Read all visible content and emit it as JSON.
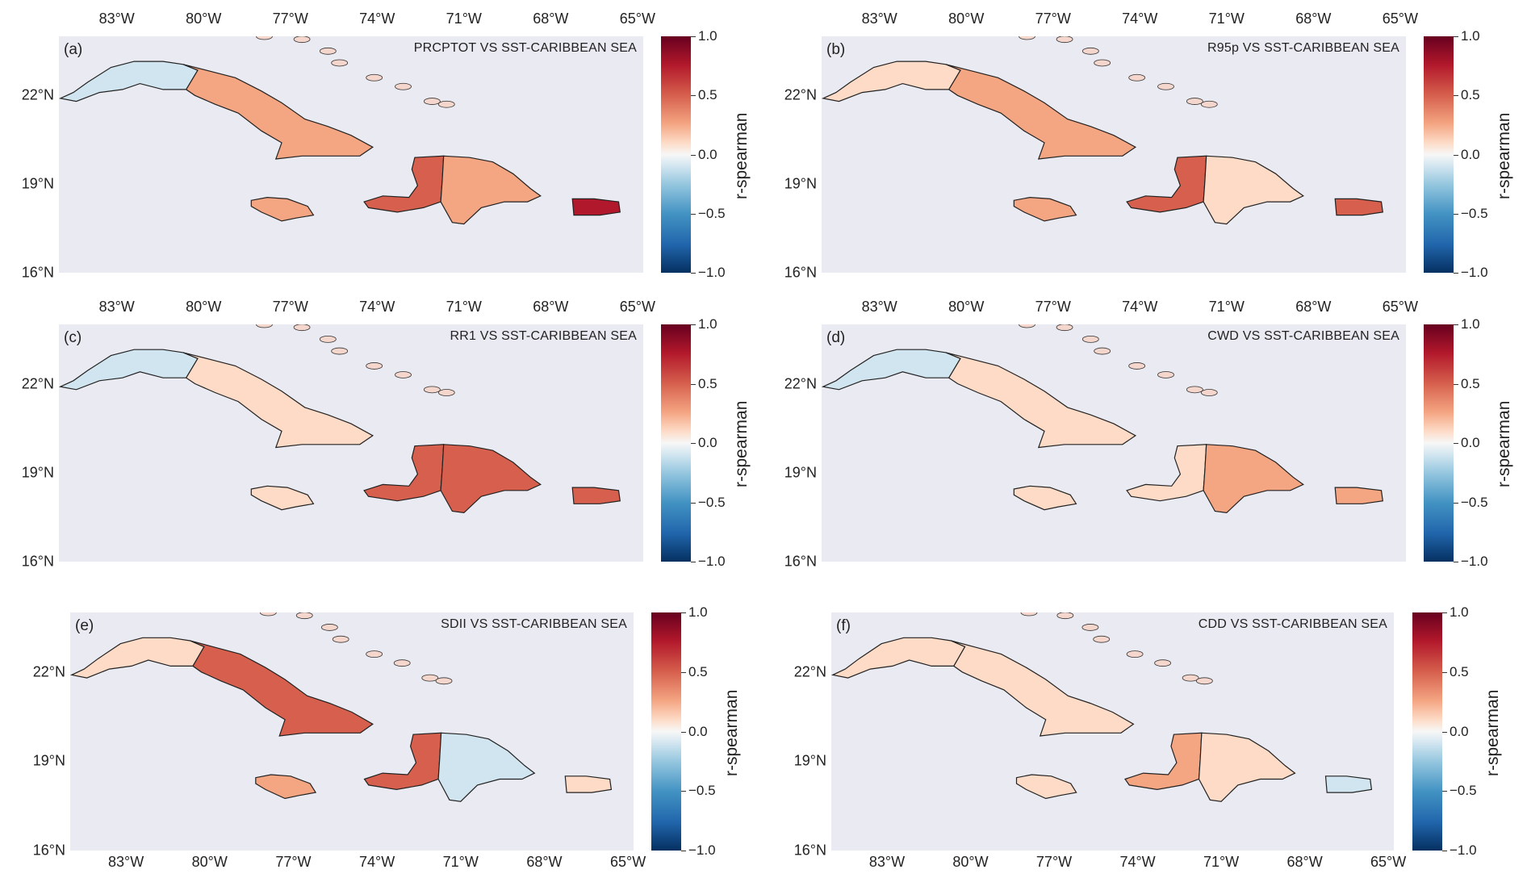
{
  "colorbar": {
    "label": "r-spearman",
    "ticks": [
      "1.0",
      "0.5",
      "0.0",
      "−0.5",
      "−1.0"
    ],
    "colors": [
      "#67001f",
      "#b2182b",
      "#d6604d",
      "#f4a582",
      "#fddbc7",
      "#f7f7f7",
      "#d1e5f0",
      "#92c5de",
      "#4393c3",
      "#2166ac",
      "#053061"
    ]
  },
  "lon_ticks": [
    "83°W",
    "80°W",
    "77°W",
    "74°W",
    "71°W",
    "68°W",
    "65°W"
  ],
  "lat_ticks": [
    "22°N",
    "19°N",
    "16°N"
  ],
  "map_extent": {
    "lon_min": -85.0,
    "lon_max": -64.8,
    "lat_min": 16.0,
    "lat_max": 24.0
  },
  "panels": [
    {
      "letter": "(a)",
      "title": "PRCPTOT VS SST-CARIBBEAN SEA",
      "cuba_w": "#d1e5f0",
      "cuba_e": "#f4a582",
      "hisp": "#f4a582",
      "hisp_w": "#d6604d",
      "jam": "#f4a582",
      "pr": "#b2182b"
    },
    {
      "letter": "(b)",
      "title": "R95p VS SST-CARIBBEAN SEA",
      "cuba_w": "#fddbc7",
      "cuba_e": "#f4a582",
      "hisp": "#fddbc7",
      "hisp_w": "#d6604d",
      "jam": "#f4a582",
      "pr": "#d6604d"
    },
    {
      "letter": "(c)",
      "title": "RR1 VS SST-CARIBBEAN SEA",
      "cuba_w": "#d1e5f0",
      "cuba_e": "#fddbc7",
      "hisp": "#d6604d",
      "hisp_w": "#d6604d",
      "jam": "#fddbc7",
      "pr": "#d6604d"
    },
    {
      "letter": "(d)",
      "title": "CWD VS SST-CARIBBEAN SEA",
      "cuba_w": "#d1e5f0",
      "cuba_e": "#fddbc7",
      "hisp": "#f4a582",
      "hisp_w": "#fddbc7",
      "jam": "#fddbc7",
      "pr": "#f4a582"
    },
    {
      "letter": "(e)",
      "title": "SDII VS SST-CARIBBEAN SEA",
      "cuba_w": "#fddbc7",
      "cuba_e": "#d6604d",
      "hisp": "#d1e5f0",
      "hisp_w": "#d6604d",
      "jam": "#f4a582",
      "pr": "#fddbc7"
    },
    {
      "letter": "(f)",
      "title": "CDD VS SST-CARIBBEAN SEA",
      "cuba_w": "#fddbc7",
      "cuba_e": "#fddbc7",
      "hisp": "#fddbc7",
      "hisp_w": "#f4a582",
      "jam": "#fddbc7",
      "pr": "#d1e5f0"
    }
  ]
}
